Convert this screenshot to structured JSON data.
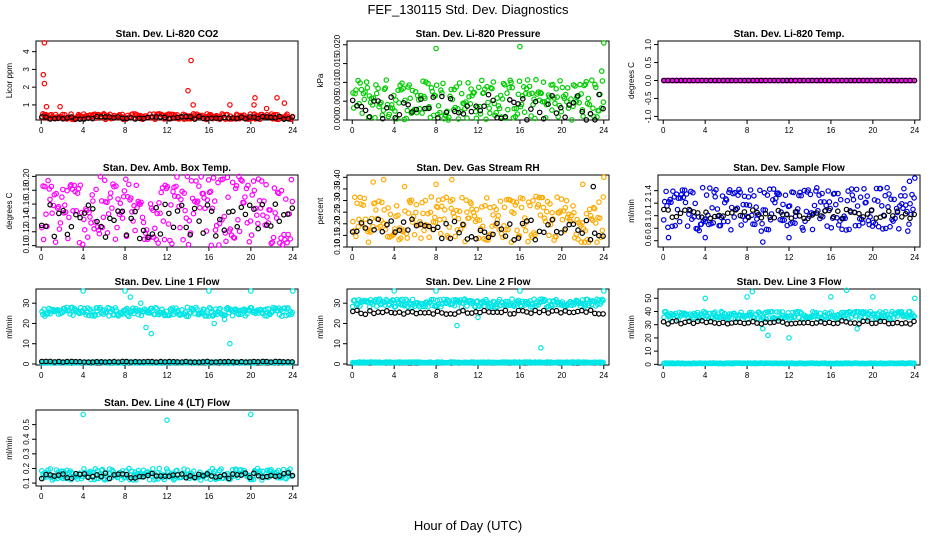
{
  "figure": {
    "title": "FEF_130115  Std. Dev. Diagnostics",
    "xlabel": "Hour of Day (UTC)"
  },
  "chart_data": [
    {
      "type": "scatter",
      "title": "Stan. Dev. Li-820 CO2",
      "ylabel": "Licor ppm",
      "xlim": [
        -0.5,
        24.5
      ],
      "ylim": [
        0.15,
        4.6
      ],
      "xticks": [
        0,
        4,
        8,
        12,
        16,
        20,
        24
      ],
      "yticks": [
        1,
        2,
        3,
        4
      ],
      "ytick_labels": [
        "1",
        "2",
        "3",
        "4"
      ],
      "series": [
        {
          "color": "#ff0000",
          "band": [
            0.18,
            0.5
          ],
          "outliers": [
            [
              0.3,
              4.5
            ],
            [
              0.2,
              2.7
            ],
            [
              0.3,
              2.2
            ],
            [
              0.5,
              0.9
            ],
            [
              1.8,
              0.9
            ],
            [
              14.3,
              3.5
            ],
            [
              14.0,
              1.8
            ],
            [
              14.5,
              1.0
            ],
            [
              18.0,
              1.0
            ],
            [
              20.4,
              1.4
            ],
            [
              20.3,
              1.0
            ],
            [
              21.5,
              0.8
            ],
            [
              22.5,
              1.4
            ],
            [
              23.2,
              1.1
            ]
          ]
        },
        {
          "color": "#000000",
          "band": [
            0.2,
            0.35
          ],
          "outliers": []
        }
      ]
    },
    {
      "type": "scatter",
      "title": "Stan. Dev. Li-820 Pressure",
      "ylabel": "kPa",
      "xlim": [
        -0.5,
        24.5
      ],
      "ylim": [
        0.0,
        0.021
      ],
      "xticks": [
        0,
        4,
        8,
        12,
        16,
        20,
        24
      ],
      "yticks": [
        0.0,
        0.005,
        0.01,
        0.015,
        0.02
      ],
      "ytick_labels": [
        "0.000",
        "0.005",
        "0.010",
        "0.015",
        "0.020"
      ],
      "series": [
        {
          "color": "#00cc00",
          "band": [
            0.0,
            0.011
          ],
          "outliers": [
            [
              8.0,
              0.019
            ],
            [
              16.0,
              0.0195
            ],
            [
              24.0,
              0.0205
            ],
            [
              23.8,
              0.013
            ]
          ]
        },
        {
          "color": "#000000",
          "band": [
            0.0,
            0.007
          ],
          "outliers": []
        }
      ]
    },
    {
      "type": "scatter",
      "title": "Stan. Dev. Li-820 Temp.",
      "ylabel": "degrees C",
      "xlim": [
        -0.5,
        24.5
      ],
      "ylim": [
        -1.1,
        1.1
      ],
      "xticks": [
        0,
        4,
        8,
        12,
        16,
        20,
        24
      ],
      "yticks": [
        -1.0,
        -0.5,
        0.0,
        0.5,
        1.0
      ],
      "ytick_labels": [
        "-1.0",
        "-0.5",
        "0.0",
        "0.5",
        "1.0"
      ],
      "series": [
        {
          "color": "#ff00ff",
          "band": [
            0.0,
            0.0
          ],
          "outliers": []
        },
        {
          "color": "#000000",
          "band": [
            0.0,
            0.0
          ],
          "outliers": []
        }
      ]
    },
    {
      "type": "scatter",
      "title": "Stan. Dev. Amb. Box Temp.",
      "ylabel": "degrees C",
      "xlim": [
        -0.5,
        24.5
      ],
      "ylim": [
        0.098,
        0.202
      ],
      "xticks": [
        0,
        4,
        8,
        12,
        16,
        20,
        24
      ],
      "yticks": [
        0.1,
        0.12,
        0.14,
        0.16,
        0.18,
        0.2
      ],
      "ytick_labels": [
        "0.10",
        "0.12",
        "0.14",
        "0.16",
        "0.18",
        "0.20"
      ],
      "series": [
        {
          "color": "#ff00ff",
          "band": [
            0.1,
            0.2
          ],
          "outliers": []
        },
        {
          "color": "#000000",
          "band": [
            0.11,
            0.16
          ],
          "outliers": []
        }
      ]
    },
    {
      "type": "scatter",
      "title": "Stan. Dev. Gas Stream RH",
      "ylabel": "percent",
      "xlim": [
        -0.5,
        24.5
      ],
      "ylim": [
        0.1,
        0.41
      ],
      "xticks": [
        0,
        4,
        8,
        12,
        16,
        20,
        24
      ],
      "yticks": [
        0.1,
        0.15,
        0.2,
        0.25,
        0.3,
        0.35,
        0.4
      ],
      "ytick_labels": [
        "0.10",
        "0.15",
        "0.20",
        "0.25",
        "0.30",
        "0.35",
        "0.40"
      ],
      "series": [
        {
          "color": "#ffaa00",
          "band": [
            0.12,
            0.32
          ],
          "outliers": [
            [
              2.0,
              0.38
            ],
            [
              3.0,
              0.39
            ],
            [
              5.0,
              0.36
            ],
            [
              8.0,
              0.37
            ],
            [
              9.5,
              0.39
            ],
            [
              22.0,
              0.37
            ],
            [
              24.0,
              0.4
            ]
          ]
        },
        {
          "color": "#000000",
          "band": [
            0.13,
            0.22
          ],
          "outliers": [
            [
              23.0,
              0.36
            ]
          ]
        }
      ]
    },
    {
      "type": "scatter",
      "title": "Stan. Dev. Sample Flow",
      "ylabel": "ml/min",
      "xlim": [
        -0.5,
        24.5
      ],
      "ylim": [
        0.5,
        1.65
      ],
      "xticks": [
        0,
        4,
        8,
        12,
        16,
        20,
        24
      ],
      "yticks": [
        0.6,
        0.8,
        1.0,
        1.2,
        1.4
      ],
      "ytick_labels": [
        "0.6",
        "0.8",
        "1.0",
        "1.2",
        "1.4"
      ],
      "series": [
        {
          "color": "#0000dd",
          "band": [
            0.75,
            1.45
          ],
          "outliers": [
            [
              0.5,
              0.65
            ],
            [
              4.0,
              0.65
            ],
            [
              9.5,
              0.58
            ],
            [
              12.0,
              0.65
            ],
            [
              23.5,
              1.55
            ],
            [
              24.0,
              1.6
            ]
          ]
        },
        {
          "color": "#000000",
          "band": [
            0.95,
            1.1
          ],
          "outliers": []
        }
      ]
    },
    {
      "type": "scatter",
      "title": "Stan. Dev. Line 1 Flow",
      "ylabel": "ml/min",
      "xlim": [
        -0.5,
        24.5
      ],
      "ylim": [
        -0.5,
        37
      ],
      "xticks": [
        0,
        4,
        8,
        12,
        16,
        20,
        24
      ],
      "yticks": [
        0,
        10,
        20,
        30
      ],
      "ytick_labels": [
        "0",
        "10",
        "20",
        "30"
      ],
      "series": [
        {
          "color": "#00e5e5",
          "band": [
            23.5,
            28
          ],
          "outliers": [
            [
              4.0,
              36
            ],
            [
              8.0,
              36
            ],
            [
              8.5,
              33
            ],
            [
              9.5,
              30
            ],
            [
              10.0,
              18
            ],
            [
              10.5,
              15
            ],
            [
              16.0,
              36
            ],
            [
              16.5,
              20
            ],
            [
              17.5,
              22
            ],
            [
              18.0,
              10
            ],
            [
              20.0,
              36
            ],
            [
              24.0,
              36
            ]
          ]
        },
        {
          "color": "#00e5e5",
          "band": [
            0.5,
            1.0
          ],
          "outliers": []
        },
        {
          "color": "#000000",
          "band": [
            0.9,
            1.3
          ],
          "outliers": []
        }
      ]
    },
    {
      "type": "scatter",
      "title": "Stan. Dev. Line 2 Flow",
      "ylabel": "ml/min",
      "xlim": [
        -0.5,
        24.5
      ],
      "ylim": [
        -0.5,
        37
      ],
      "xticks": [
        0,
        4,
        8,
        12,
        16,
        20,
        24
      ],
      "yticks": [
        0,
        10,
        20,
        30
      ],
      "ytick_labels": [
        "0",
        "10",
        "20",
        "30"
      ],
      "series": [
        {
          "color": "#00e5e5",
          "band": [
            28,
            32
          ],
          "outliers": [
            [
              4.0,
              36
            ],
            [
              8.0,
              36
            ],
            [
              10.0,
              19
            ],
            [
              12.0,
              23
            ],
            [
              16.0,
              36
            ],
            [
              18.0,
              8
            ],
            [
              24.0,
              36
            ]
          ]
        },
        {
          "color": "#00e5e5",
          "band": [
            0.5,
            1.0
          ],
          "outliers": []
        },
        {
          "color": "#000000",
          "band": [
            24.5,
            26.5
          ],
          "outliers": []
        }
      ]
    },
    {
      "type": "scatter",
      "title": "Stan. Dev. Line 3 Flow",
      "ylabel": "ml/min",
      "xlim": [
        -0.5,
        24.5
      ],
      "ylim": [
        -0.5,
        57
      ],
      "xticks": [
        0,
        4,
        8,
        12,
        16,
        20,
        24
      ],
      "yticks": [
        0,
        10,
        20,
        30,
        40,
        50
      ],
      "ytick_labels": [
        "0",
        "10",
        "20",
        "30",
        "40",
        "50"
      ],
      "series": [
        {
          "color": "#00e5e5",
          "band": [
            34,
            40
          ],
          "outliers": [
            [
              4.0,
              50
            ],
            [
              8.0,
              51
            ],
            [
              8.5,
              55
            ],
            [
              9.5,
              27
            ],
            [
              10.0,
              22
            ],
            [
              12.0,
              20
            ],
            [
              16.0,
              51
            ],
            [
              17.5,
              56
            ],
            [
              18.5,
              27
            ],
            [
              20.0,
              51
            ],
            [
              24.0,
              50
            ]
          ]
        },
        {
          "color": "#00e5e5",
          "band": [
            0.5,
            1.0
          ],
          "outliers": []
        },
        {
          "color": "#000000",
          "band": [
            30.5,
            33
          ],
          "outliers": []
        }
      ]
    },
    {
      "type": "scatter",
      "title": "Stan. Dev. Line 4 (LT) Flow",
      "ylabel": "ml/min",
      "xlim": [
        -0.5,
        24.5
      ],
      "ylim": [
        0.08,
        0.6
      ],
      "xticks": [
        0,
        4,
        8,
        12,
        16,
        20,
        24
      ],
      "yticks": [
        0.1,
        0.2,
        0.3,
        0.4,
        0.5
      ],
      "ytick_labels": [
        "0.1",
        "0.2",
        "0.3",
        "0.4",
        "0.5"
      ],
      "series": [
        {
          "color": "#00e5e5",
          "band": [
            0.12,
            0.2
          ],
          "outliers": [
            [
              4.0,
              0.57
            ],
            [
              12.0,
              0.53
            ],
            [
              20.0,
              0.57
            ]
          ]
        },
        {
          "color": "#000000",
          "band": [
            0.13,
            0.17
          ],
          "outliers": []
        }
      ]
    }
  ]
}
